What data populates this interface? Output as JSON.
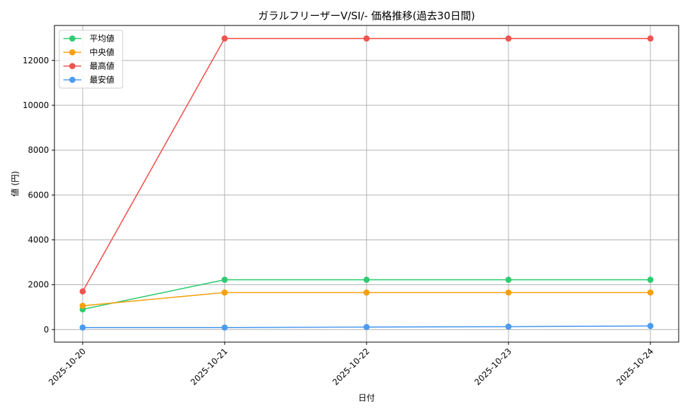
{
  "chart_data": {
    "type": "line",
    "title": "ガラルフリーザーV/SI/- 価格推移(過去30日間)",
    "xlabel": "日付",
    "ylabel": "値 (円)",
    "categories": [
      "2025-10-20",
      "2025-10-21",
      "2025-10-22",
      "2025-10-23",
      "2025-10-24"
    ],
    "yticks": [
      0,
      2000,
      4000,
      6000,
      8000,
      10000,
      12000
    ],
    "ylim": [
      -560,
      13560
    ],
    "grid": true,
    "legend_position": "top-left",
    "series": [
      {
        "name": "平均値",
        "color": "#2ecc71",
        "values": [
          900,
          2220,
          2220,
          2220,
          2220
        ]
      },
      {
        "name": "中央値",
        "color": "#f5a00e",
        "values": [
          1060,
          1650,
          1650,
          1650,
          1650
        ]
      },
      {
        "name": "最高値",
        "color": "#ef5350",
        "values": [
          1700,
          12980,
          12980,
          12980,
          12980
        ]
      },
      {
        "name": "最安値",
        "color": "#4c9bf0",
        "values": [
          90,
          90,
          110,
          130,
          160
        ]
      }
    ]
  }
}
